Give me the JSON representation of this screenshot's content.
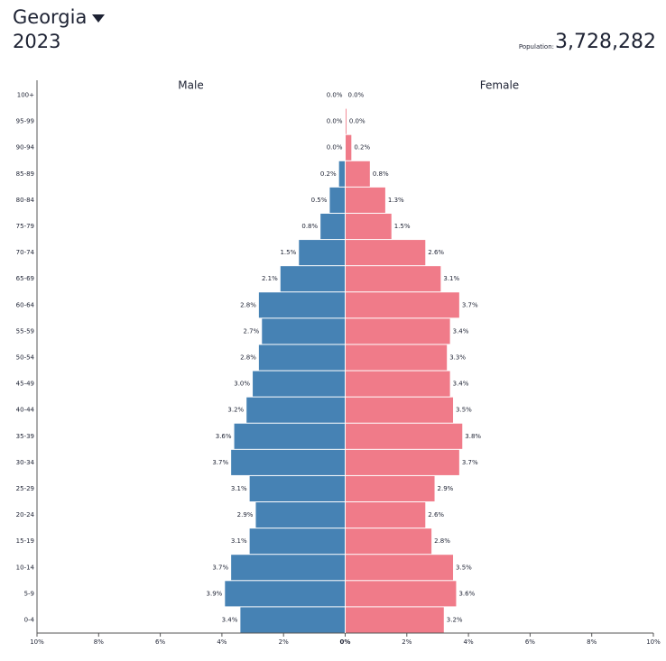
{
  "chart_data": {
    "type": "pyramid",
    "title": "Georgia",
    "subtitle": "2023",
    "population_caption": "Population:",
    "population": {
      "value": 3728282,
      "label": "3,728,282"
    },
    "categories": [
      "0-4",
      "5-9",
      "10-14",
      "15-19",
      "20-24",
      "25-29",
      "30-34",
      "35-39",
      "40-44",
      "45-49",
      "50-54",
      "55-59",
      "60-64",
      "65-69",
      "70-74",
      "75-79",
      "80-84",
      "85-89",
      "90-94",
      "95-99",
      "100+"
    ],
    "series": [
      {
        "name": "Male",
        "color": "#4682b4",
        "side": "left",
        "values": [
          3.4,
          3.9,
          3.7,
          3.1,
          2.9,
          3.1,
          3.7,
          3.6,
          3.2,
          3.0,
          2.8,
          2.7,
          2.8,
          2.1,
          1.5,
          0.8,
          0.5,
          0.2,
          0.0,
          0.0,
          0.0
        ],
        "value_labels": [
          "3.4%",
          "3.9%",
          "3.7%",
          "3.1%",
          "2.9%",
          "3.1%",
          "3.7%",
          "3.6%",
          "3.2%",
          "3.0%",
          "2.8%",
          "2.7%",
          "2.8%",
          "2.1%",
          "1.5%",
          "0.8%",
          "0.5%",
          "0.2%",
          "0.0%",
          "0.0%",
          "0.0%"
        ]
      },
      {
        "name": "Female",
        "color": "#f07b89",
        "side": "right",
        "values": [
          3.2,
          3.6,
          3.5,
          2.8,
          2.6,
          2.9,
          3.7,
          3.8,
          3.5,
          3.4,
          3.3,
          3.4,
          3.7,
          3.1,
          2.6,
          1.5,
          1.3,
          0.8,
          0.2,
          0.04,
          0.0
        ],
        "value_labels": [
          "3.2%",
          "3.6%",
          "3.5%",
          "2.8%",
          "2.6%",
          "2.9%",
          "3.7%",
          "3.8%",
          "3.5%",
          "3.4%",
          "3.3%",
          "3.4%",
          "3.7%",
          "3.1%",
          "2.6%",
          "1.5%",
          "1.3%",
          "0.8%",
          "0.2%",
          "0.0%",
          "0.0%"
        ]
      }
    ],
    "xlim": [
      -10,
      10
    ],
    "xticks": [
      {
        "value": -10,
        "label": "10%"
      },
      {
        "value": -8,
        "label": "8%"
      },
      {
        "value": -6,
        "label": "6%"
      },
      {
        "value": -4,
        "label": "4%"
      },
      {
        "value": -2,
        "label": "2%"
      },
      {
        "value": 0,
        "label": "0%"
      },
      {
        "value": 2,
        "label": "2%"
      },
      {
        "value": 4,
        "label": "4%"
      },
      {
        "value": 6,
        "label": "6%"
      },
      {
        "value": 8,
        "label": "8%"
      },
      {
        "value": 10,
        "label": "10%"
      }
    ]
  }
}
